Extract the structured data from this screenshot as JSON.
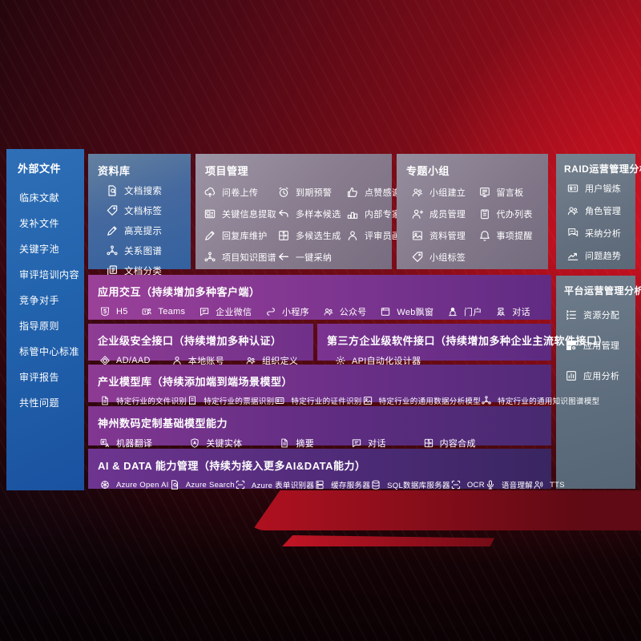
{
  "colors": {
    "background_red": "#b00f1e",
    "sidebar_blue": "#2263ad",
    "library_blue": "#45699f",
    "panel_gray": "#877b8d",
    "raid_slate": "#64707f",
    "row_purple": "#7c3590",
    "text": "#ffffff"
  },
  "sidebar": {
    "title": "外部文件",
    "items": [
      "临床文献",
      "发补文件",
      "关键字池",
      "审评培训内容",
      "竞争对手",
      "指导原则",
      "标管中心标准",
      "审评报告",
      "共性问题"
    ]
  },
  "panels": {
    "ziliao": {
      "title": "资料库",
      "items": [
        {
          "icon": "document-search-icon",
          "label": "文档搜索"
        },
        {
          "icon": "tag-icon",
          "label": "文档标签"
        },
        {
          "icon": "highlighter-icon",
          "label": "高亮提示"
        },
        {
          "icon": "relation-graph-icon",
          "label": "关系图谱"
        },
        {
          "icon": "document-category-icon",
          "label": "文档分类"
        }
      ]
    },
    "xiangmu": {
      "title": "项目管理",
      "items": [
        {
          "icon": "cloud-upload-icon",
          "label": "问卷上传"
        },
        {
          "icon": "alarm-icon",
          "label": "到期预警"
        },
        {
          "icon": "thumbs-up-icon",
          "label": "点赞感谢"
        },
        {
          "icon": "info-extract-icon",
          "label": "关键信息提取"
        },
        {
          "icon": "multi-sample-icon",
          "label": "多样本候选"
        },
        {
          "icon": "expert-rank-icon",
          "label": "内部专家排名"
        },
        {
          "icon": "reply-edit-icon",
          "label": "回复库维护"
        },
        {
          "icon": "multi-generate-icon",
          "label": "多候选生成"
        },
        {
          "icon": "reviewer-portrait-icon",
          "label": "评审员画像"
        },
        {
          "icon": "knowledge-graph-icon",
          "label": "项目知识图谱"
        },
        {
          "icon": "adopt-icon",
          "label": "一键采纳"
        }
      ]
    },
    "zhuanti": {
      "title": "专题小组",
      "items": [
        {
          "icon": "group-create-icon",
          "label": "小组建立"
        },
        {
          "icon": "message-board-icon",
          "label": "留言板"
        },
        {
          "icon": "member-manage-icon",
          "label": "成员管理"
        },
        {
          "icon": "todo-list-icon",
          "label": "代办列表"
        },
        {
          "icon": "material-manage-icon",
          "label": "资料管理"
        },
        {
          "icon": "reminder-bell-icon",
          "label": "事项提醒"
        },
        {
          "icon": "group-tag-icon",
          "label": "小组标签"
        }
      ]
    },
    "raid": {
      "title": "RAID运营管理分析",
      "items": [
        {
          "icon": "user-card-icon",
          "label": "用户锻炼"
        },
        {
          "icon": "role-manage-icon",
          "label": "角色管理"
        },
        {
          "icon": "adopt-analysis-icon",
          "label": "采纳分析"
        },
        {
          "icon": "trend-icon",
          "label": "问题趋势"
        }
      ]
    },
    "pingtai": {
      "title": "平台运营管理分析",
      "items": [
        {
          "icon": "resource-allocate-icon",
          "label": "资源分配"
        },
        {
          "icon": "app-manage-icon",
          "label": "应用管理"
        },
        {
          "icon": "app-analysis-icon",
          "label": "应用分析"
        }
      ]
    },
    "yingyong": {
      "title": "应用交互（持续增加多种客户端）",
      "items": [
        {
          "icon": "h5-icon",
          "label": "H5"
        },
        {
          "icon": "teams-icon",
          "label": "Teams"
        },
        {
          "icon": "wechat-work-icon",
          "label": "企业微信"
        },
        {
          "icon": "miniprogram-icon",
          "label": "小程序"
        },
        {
          "icon": "official-account-icon",
          "label": "公众号"
        },
        {
          "icon": "web-popup-icon",
          "label": "Web飘窗"
        },
        {
          "icon": "portal-icon",
          "label": "门户"
        },
        {
          "icon": "dialog-icon",
          "label": "对话"
        }
      ]
    },
    "anquan": {
      "title": "企业级安全接口（持续增加多种认证）",
      "items": [
        {
          "icon": "ad-aad-icon",
          "label": "AD/AAD"
        },
        {
          "icon": "local-account-icon",
          "label": "本地账号"
        },
        {
          "icon": "org-define-icon",
          "label": "组织定义"
        }
      ]
    },
    "disanfang": {
      "title": "第三方企业级软件接口（持续增加多种企业主流软件接口）",
      "items": [
        {
          "icon": "api-designer-icon",
          "label": "API自动化设计器"
        }
      ]
    },
    "chanye": {
      "title": "产业模型库（持续添加端到端场景模型）",
      "items": [
        {
          "icon": "industry-file-icon",
          "label": "特定行业的文件识别"
        },
        {
          "icon": "industry-receipt-icon",
          "label": "特定行业的票据识别"
        },
        {
          "icon": "industry-idcard-icon",
          "label": "特定行业的证件识别"
        },
        {
          "icon": "industry-data-model-icon",
          "label": "特定行业的通用数据分析模型"
        },
        {
          "icon": "industry-kg-model-icon",
          "label": "特定行业的通用知识图谱模型"
        }
      ]
    },
    "shenzhou": {
      "title": "神州数码定制基础模型能力",
      "items": [
        {
          "icon": "translate-icon",
          "label": "机器翻译"
        },
        {
          "icon": "key-entity-icon",
          "label": "关键实体"
        },
        {
          "icon": "summary-icon",
          "label": "摘要"
        },
        {
          "icon": "chat-icon",
          "label": "对话"
        },
        {
          "icon": "compose-icon",
          "label": "内容合成"
        }
      ]
    },
    "aidata": {
      "title": "AI & DATA 能力管理（持续为接入更多AI&DATA能力）",
      "items": [
        {
          "icon": "openai-icon",
          "label": "Azure Open AI"
        },
        {
          "icon": "azure-search-icon",
          "label": "Azure Search"
        },
        {
          "icon": "form-recognizer-icon",
          "label": "Azure 表单识别器"
        },
        {
          "icon": "cache-server-icon",
          "label": "缓存服务器"
        },
        {
          "icon": "sql-db-icon",
          "label": "SQL数据库服务器"
        },
        {
          "icon": "ocr-icon",
          "label": "OCR"
        },
        {
          "icon": "speech-icon",
          "label": "语音理解"
        },
        {
          "icon": "tts-icon",
          "label": "TTS"
        }
      ]
    }
  }
}
